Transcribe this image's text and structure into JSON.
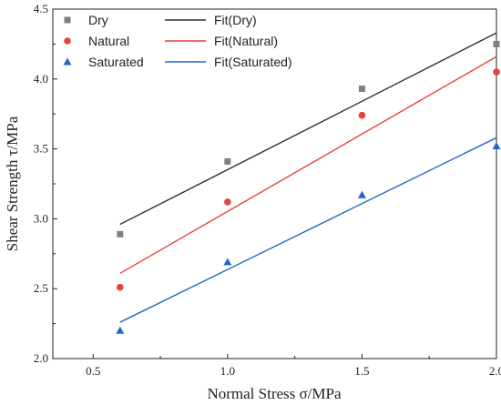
{
  "chart_data": {
    "type": "scatter",
    "title": "",
    "xlabel": "Normal Stress σ/MPa",
    "ylabel": "Shear Strength τ/MPa",
    "xlim": [
      0.35,
      2.0
    ],
    "ylim": [
      2.0,
      4.5
    ],
    "xticks": [
      "0.5",
      "1.0",
      "1.5",
      "2.0"
    ],
    "yticks": [
      "2.0",
      "2.5",
      "3.0",
      "3.5",
      "4.0",
      "4.5"
    ],
    "grid": false,
    "legend_position": "top-left",
    "series": [
      {
        "name": "Dry",
        "fit_name": "Fit(Dry)",
        "marker": "square",
        "color": "#808080",
        "fit_color": "#333333",
        "x": [
          0.6,
          1.0,
          1.5,
          2.0
        ],
        "y": [
          2.89,
          3.41,
          3.93,
          4.25
        ],
        "fit": {
          "x": [
            0.6,
            2.0
          ],
          "y": [
            2.96,
            4.33
          ]
        }
      },
      {
        "name": "Natural",
        "fit_name": "Fit(Natural)",
        "marker": "circle",
        "color": "#e8423f",
        "fit_color": "#e8423f",
        "x": [
          0.6,
          1.0,
          1.5,
          2.0
        ],
        "y": [
          2.51,
          3.12,
          3.74,
          4.05
        ],
        "fit": {
          "x": [
            0.6,
            2.0
          ],
          "y": [
            2.61,
            4.16
          ]
        }
      },
      {
        "name": "Saturated",
        "fit_name": "Fit(Saturated)",
        "marker": "triangle",
        "color": "#2266cc",
        "fit_color": "#2266cc",
        "x": [
          0.6,
          1.0,
          1.5,
          2.0
        ],
        "y": [
          2.2,
          2.69,
          3.17,
          3.52
        ],
        "fit": {
          "x": [
            0.6,
            2.0
          ],
          "y": [
            2.26,
            3.58
          ]
        }
      }
    ]
  }
}
